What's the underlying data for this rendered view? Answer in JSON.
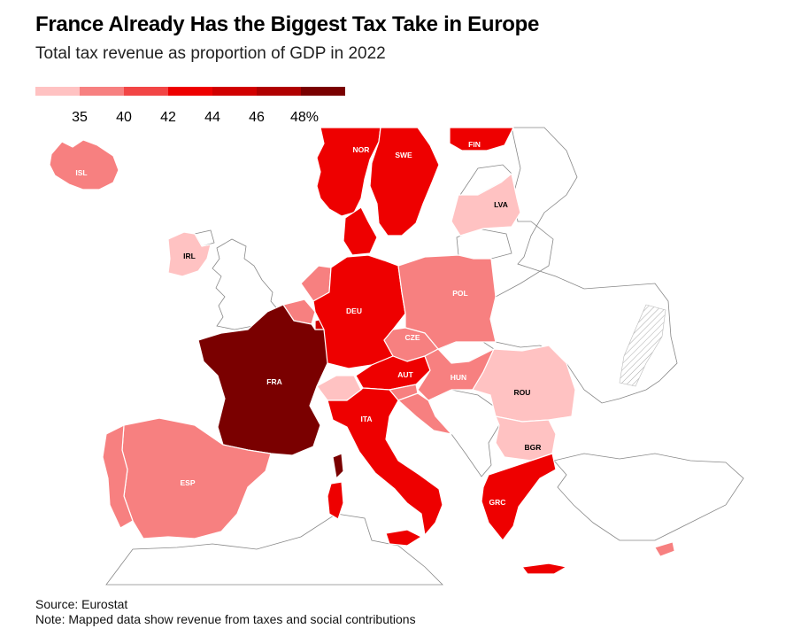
{
  "title": "France Already Has the Biggest Tax Take in Europe",
  "subtitle": "Total tax revenue as proportion of GDP in 2022",
  "legend": {
    "colors": [
      "#ffc2c2",
      "#f78080",
      "#f24545",
      "#ee0000",
      "#d10000",
      "#b00000",
      "#7a0000"
    ],
    "ticks": [
      "35",
      "40",
      "42",
      "44",
      "46",
      "48%"
    ]
  },
  "countries": [
    {
      "code": "ISL",
      "color": "#f78080",
      "label_color": "#ffffff"
    },
    {
      "code": "NOR",
      "color": "#ee0000",
      "label_color": "#ffffff"
    },
    {
      "code": "SWE",
      "color": "#ee0000",
      "label_color": "#ffffff"
    },
    {
      "code": "FIN",
      "color": "#ee0000",
      "label_color": "#ffffff"
    },
    {
      "code": "LVA",
      "color": "#ffc2c2",
      "label_color": "#000000"
    },
    {
      "code": "IRL",
      "color": "#ffc2c2",
      "label_color": "#000000"
    },
    {
      "code": "POL",
      "color": "#f78080",
      "label_color": "#ffffff"
    },
    {
      "code": "DEU",
      "color": "#ee0000",
      "label_color": "#ffffff"
    },
    {
      "code": "CZE",
      "color": "#f78080",
      "label_color": "#ffffff"
    },
    {
      "code": "FRA",
      "color": "#7a0000",
      "label_color": "#ffffff"
    },
    {
      "code": "AUT",
      "color": "#ee0000",
      "label_color": "#ffffff"
    },
    {
      "code": "HUN",
      "color": "#f78080",
      "label_color": "#ffffff"
    },
    {
      "code": "ROU",
      "color": "#ffc2c2",
      "label_color": "#000000"
    },
    {
      "code": "ITA",
      "color": "#ee0000",
      "label_color": "#ffffff"
    },
    {
      "code": "BGR",
      "color": "#ffc2c2",
      "label_color": "#000000"
    },
    {
      "code": "ESP",
      "color": "#f78080",
      "label_color": "#ffffff"
    },
    {
      "code": "GRC",
      "color": "#ee0000",
      "label_color": "#ffffff"
    }
  ],
  "colors": {
    "unshaded_fill": "#ffffff",
    "unshaded_stroke": "#888888",
    "border_stroke": "#ffffff"
  },
  "source": "Source: Eurostat",
  "note": "Note: Mapped data show revenue from taxes and social contributions"
}
